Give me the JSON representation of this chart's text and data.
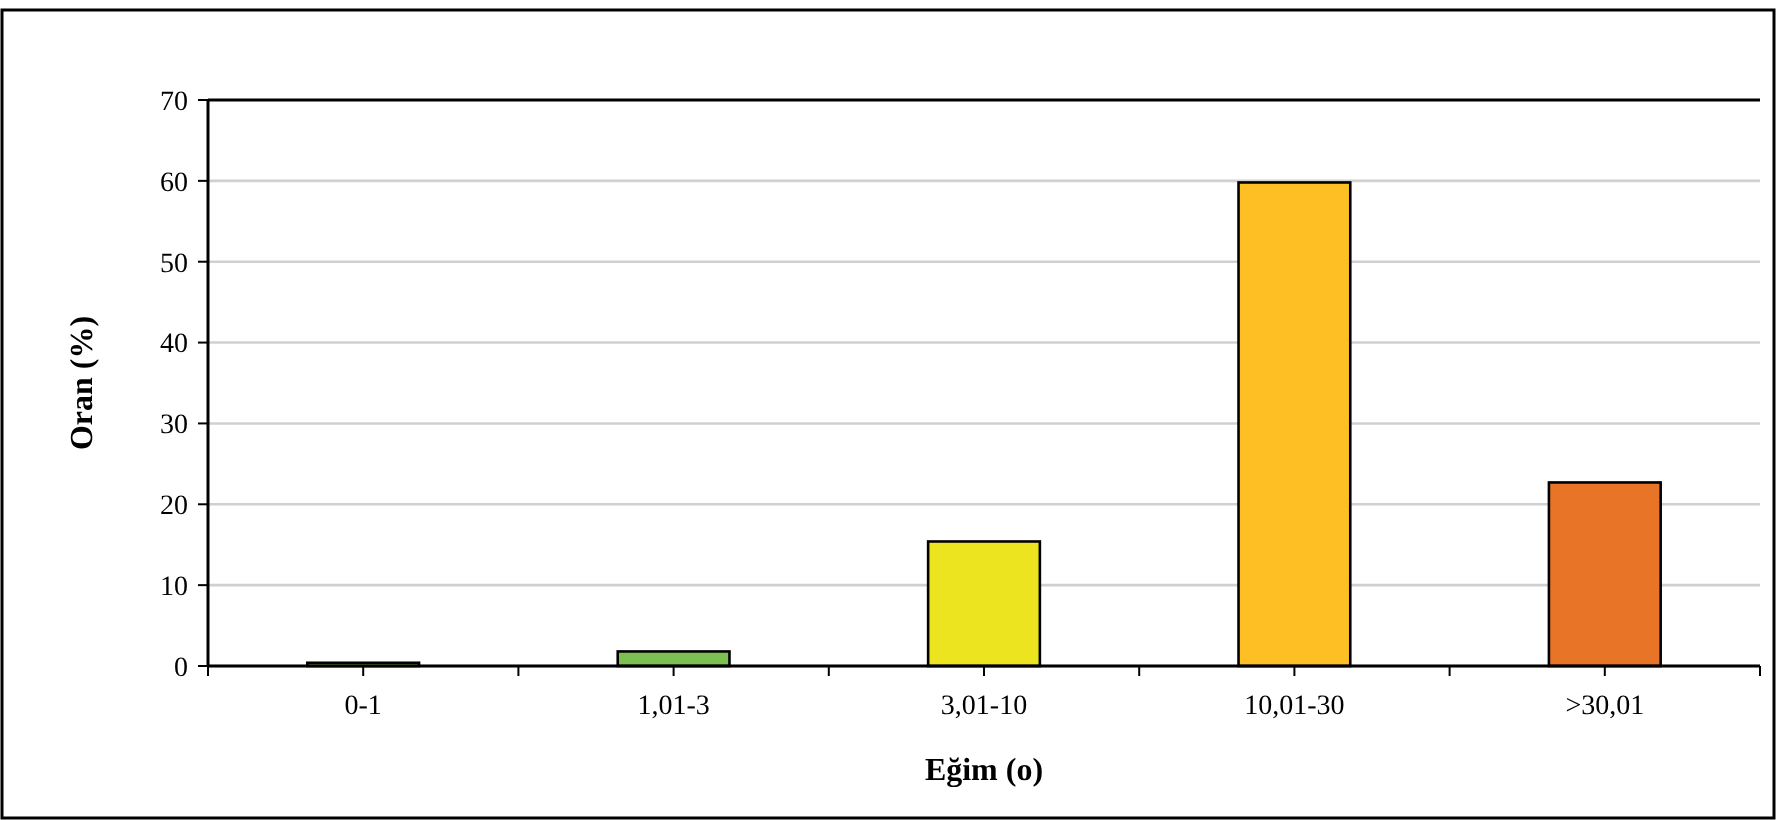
{
  "chart_data": {
    "type": "bar",
    "xlabel": "Eğim (o)",
    "ylabel": "Oran (%)",
    "categories": [
      "0-1",
      "1,01-3",
      "3,01-10",
      "10,01-30",
      ">30,01"
    ],
    "values": [
      0.4,
      1.8,
      15.4,
      59.8,
      22.7
    ],
    "colors": [
      "#8dbf3f",
      "#7dc052",
      "#ebe41e",
      "#fdbf24",
      "#e87428"
    ],
    "ylim": [
      0,
      70
    ],
    "yticks": [
      0,
      10,
      20,
      30,
      40,
      50,
      60,
      70
    ],
    "grid": "y"
  }
}
